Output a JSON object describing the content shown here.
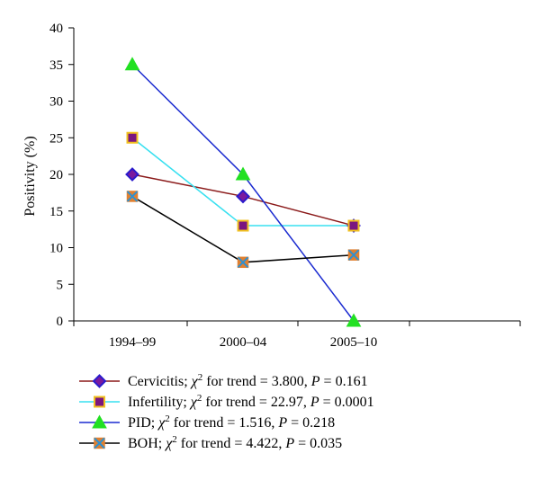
{
  "chart_data": {
    "type": "line",
    "title": "",
    "xlabel": "",
    "ylabel": "Positivity (%)",
    "ylim": [
      0,
      40
    ],
    "yticks": [
      "0",
      "5",
      "10",
      "15",
      "20",
      "25",
      "30",
      "35",
      "40"
    ],
    "categories": [
      "1994–99",
      "2000–04",
      "2005–10"
    ],
    "grid": false,
    "legend_position": "bottom",
    "series": [
      {
        "name": "Cervicitis",
        "legend": {
          "prefix": "Cervicitis; ",
          "chi": "χ",
          "sup": "2",
          "mid": " for trend = 3.800, ",
          "p": "P",
          "tail": " = 0.161"
        },
        "values": [
          20,
          17,
          13
        ],
        "line_color": "#8b1a1a",
        "marker": "diamond",
        "marker_fill": "#7a1a9e",
        "marker_stroke": "#2a1acb"
      },
      {
        "name": "Infertility",
        "legend": {
          "prefix": "Infertility; ",
          "chi": "χ",
          "sup": "2",
          "mid": " for trend = 22.97, ",
          "p": "P",
          "tail": " = 0.0001"
        },
        "values": [
          25,
          13,
          13
        ],
        "line_color": "#38e0f0",
        "marker": "square",
        "marker_fill": "#7a1580",
        "marker_stroke": "#f0c020"
      },
      {
        "name": "PID",
        "legend": {
          "prefix": "PID; ",
          "chi": "χ",
          "sup": "2",
          "mid": " for trend = 1.516, ",
          "p": "P",
          "tail": " = 0.218"
        },
        "values": [
          35,
          20,
          0
        ],
        "line_color": "#1a2ad0",
        "marker": "triangle",
        "marker_fill": "#22e022",
        "marker_stroke": "#22e022"
      },
      {
        "name": "BOH",
        "legend": {
          "prefix": "BOH; ",
          "chi": "χ",
          "sup": "2",
          "mid": " for trend = 4.422, ",
          "p": "P",
          "tail": " = 0.035"
        },
        "values": [
          17,
          8,
          9
        ],
        "line_color": "#000000",
        "marker": "xsquare",
        "marker_fill": "#e08030",
        "marker_stroke": "#3090d0"
      }
    ]
  }
}
